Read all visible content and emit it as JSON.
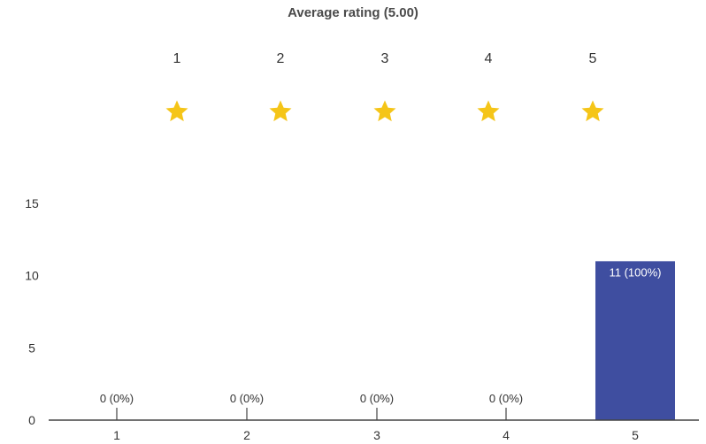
{
  "title": "Average rating (5.00)",
  "rating_scale": {
    "items": [
      {
        "label": "1",
        "icon": "star-icon"
      },
      {
        "label": "2",
        "icon": "star-icon"
      },
      {
        "label": "3",
        "icon": "star-icon"
      },
      {
        "label": "4",
        "icon": "star-icon"
      },
      {
        "label": "5",
        "icon": "star-icon"
      }
    ],
    "star_color": "#f5c518"
  },
  "chart_data": {
    "type": "bar",
    "title": "Average rating (5.00)",
    "xlabel": "",
    "ylabel": "",
    "categories": [
      "1",
      "2",
      "3",
      "4",
      "5"
    ],
    "values": [
      0,
      0,
      0,
      0,
      11
    ],
    "data_labels": [
      "0 (0%)",
      "0 (0%)",
      "0 (0%)",
      "0 (0%)",
      "11 (100%)"
    ],
    "yticks": [
      0,
      5,
      10,
      15
    ],
    "ylim": [
      0,
      15
    ],
    "grid": false,
    "bar_color": "#3f4ea0",
    "bar_label_color_inside": "#ffffff",
    "bar_label_color_outside": "#333333"
  }
}
